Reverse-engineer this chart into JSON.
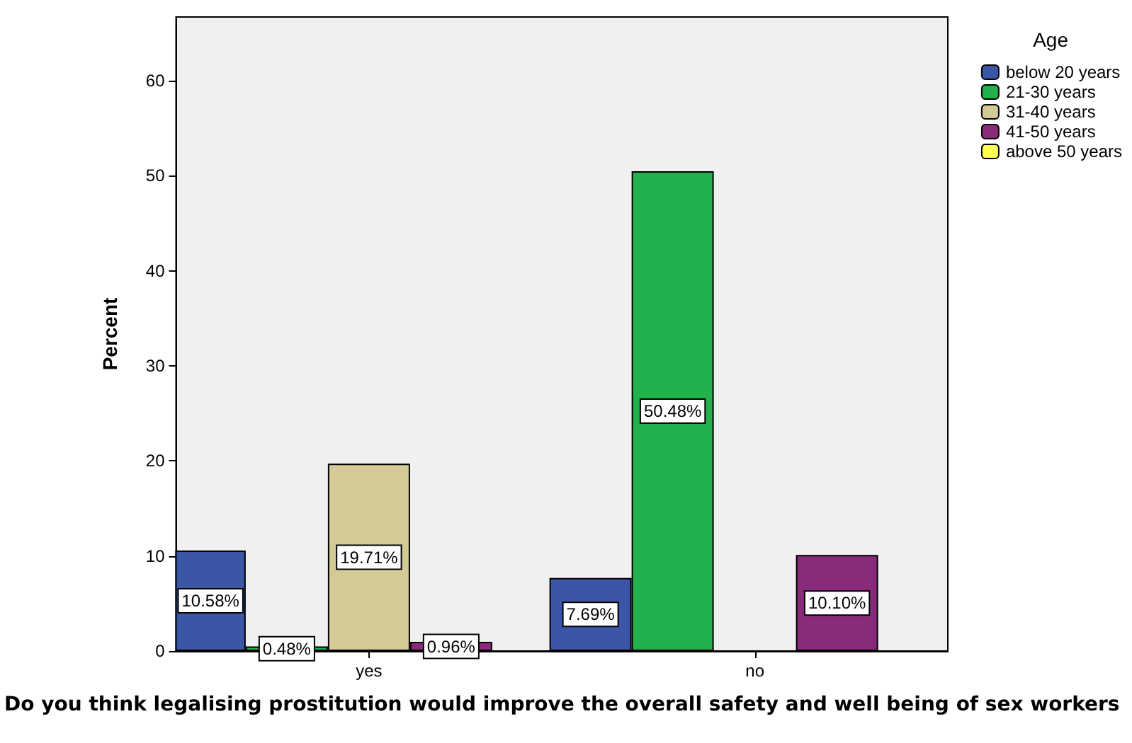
{
  "chart_data": {
    "type": "bar",
    "xlabel": "Do you think legalising prostitution would improve the overall safety and well being of sex workers",
    "ylabel": "Percent",
    "legend_title": "Age",
    "categories": [
      "yes",
      "no"
    ],
    "series": [
      {
        "name": "below 20 years",
        "color": "#3c56a6",
        "values": [
          10.58,
          7.69
        ],
        "value_labels": [
          "10.58%",
          "7.69%"
        ]
      },
      {
        "name": "21-30 years",
        "color": "#22b14c",
        "values": [
          0.48,
          50.48
        ],
        "value_labels": [
          "0.48%",
          "50.48%"
        ]
      },
      {
        "name": "31-40 years",
        "color": "#d4ca96",
        "values": [
          19.71,
          null
        ],
        "value_labels": [
          "19.71%",
          null
        ]
      },
      {
        "name": "41-50 years",
        "color": "#8a2a7b",
        "values": [
          0.96,
          10.1
        ],
        "value_labels": [
          "0.96%",
          "10.10%"
        ]
      },
      {
        "name": "above 50 years",
        "color": "#ffff55",
        "values": [
          null,
          null
        ],
        "value_labels": [
          null,
          null
        ]
      }
    ],
    "ylim": [
      0,
      66.7
    ],
    "yticks": [
      0,
      10,
      20,
      30,
      40,
      50,
      60
    ],
    "grid": false,
    "legend": "top right"
  }
}
